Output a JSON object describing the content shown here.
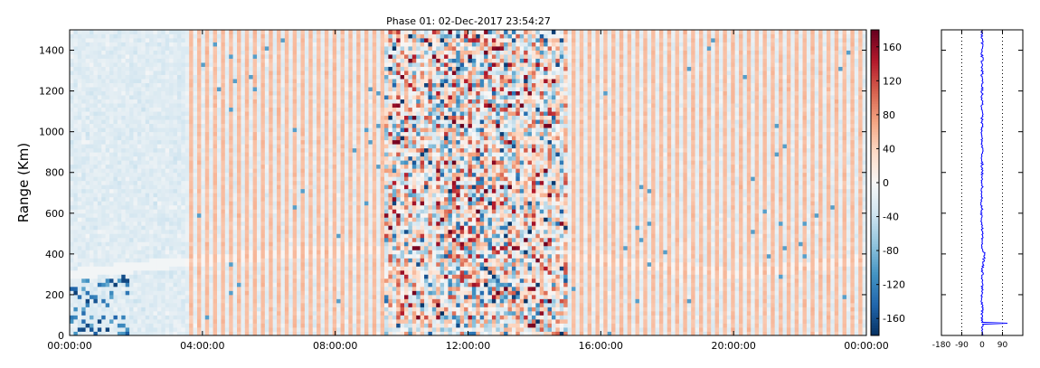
{
  "chart_data": [
    {
      "type": "heatmap",
      "title": "Phase 01: 02-Dec-2017 23:54:27",
      "ylabel": "Range (Km)",
      "xlabel": "",
      "x_ticks": [
        "00:00:00",
        "04:00:00",
        "08:00:00",
        "12:00:00",
        "16:00:00",
        "20:00:00",
        "00:00:00"
      ],
      "x_range_hours": [
        0,
        24
      ],
      "y_ticks": [
        0,
        200,
        400,
        600,
        800,
        1000,
        1200,
        1400
      ],
      "ylim": [
        0,
        1500
      ],
      "colorbar": {
        "colormap": "RdBu_r",
        "range": [
          -180,
          180
        ],
        "ticks": [
          160,
          120,
          80,
          40,
          0,
          -40,
          -80,
          -120,
          -160
        ]
      },
      "regions": [
        {
          "x_hours": [
            0,
            3.5
          ],
          "mean_value": -20
        },
        {
          "x_hours": [
            3.5,
            9.5
          ],
          "pattern": "alternating stripes ~55 and ~-20"
        },
        {
          "x_hours": [
            9.5,
            15
          ],
          "pattern": "high-variance noise, -180 to 180"
        },
        {
          "x_hours": [
            15,
            24
          ],
          "pattern": "alternating stripes ~55 and ~-15"
        }
      ]
    },
    {
      "type": "line",
      "x_ticks": [
        -180,
        -90,
        0,
        90
      ],
      "xlim": [
        -180,
        180
      ],
      "ylim": [
        0,
        1500
      ],
      "gridlines_x": [
        -90,
        90
      ],
      "profile": [
        {
          "range": 0,
          "phase": 0
        },
        {
          "range": 60,
          "phase": 0
        },
        {
          "range": 62,
          "phase": 112
        },
        {
          "range": 65,
          "phase": 0
        },
        {
          "range": 300,
          "phase": 0
        },
        {
          "range": 400,
          "phase": 10
        },
        {
          "range": 430,
          "phase": 2
        },
        {
          "range": 600,
          "phase": -2
        },
        {
          "range": 700,
          "phase": 0
        },
        {
          "range": 1500,
          "phase": 0
        }
      ]
    }
  ]
}
